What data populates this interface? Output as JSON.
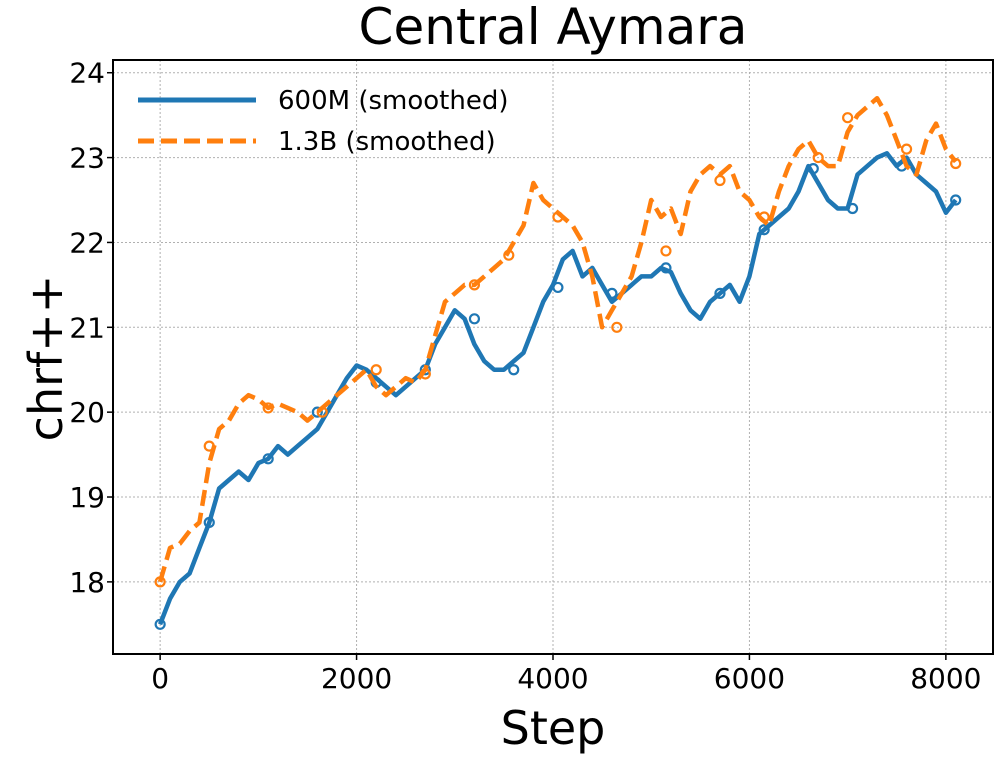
{
  "chart_data": {
    "type": "line",
    "title": "Central Aymara",
    "xlabel": "Step",
    "ylabel": "chrf++",
    "xlim": [
      -480,
      8480
    ],
    "ylim": [
      17.15,
      24.15
    ],
    "xticks": [
      0,
      2000,
      4000,
      6000,
      8000
    ],
    "xtick_labels": [
      "0",
      "2000",
      "4000",
      "6000",
      "8000"
    ],
    "yticks": [
      18,
      19,
      20,
      21,
      22,
      23,
      24
    ],
    "ytick_labels": [
      "18",
      "19",
      "20",
      "21",
      "22",
      "23",
      "24"
    ],
    "grid": true,
    "legend_position": "top-left",
    "series": [
      {
        "name": "600M (smoothed)",
        "color": "#1f77b4",
        "style": "solid",
        "x": [
          0,
          100,
          200,
          300,
          400,
          500,
          600,
          700,
          800,
          900,
          1000,
          1100,
          1200,
          1300,
          1400,
          1500,
          1600,
          1700,
          1800,
          1900,
          2000,
          2100,
          2200,
          2300,
          2400,
          2500,
          2600,
          2700,
          2800,
          2900,
          3000,
          3100,
          3200,
          3300,
          3400,
          3500,
          3600,
          3700,
          3800,
          3900,
          4000,
          4100,
          4200,
          4300,
          4400,
          4500,
          4600,
          4700,
          4800,
          4900,
          5000,
          5100,
          5200,
          5300,
          5400,
          5500,
          5600,
          5700,
          5800,
          5900,
          6000,
          6100,
          6200,
          6300,
          6400,
          6500,
          6600,
          6700,
          6800,
          6900,
          7000,
          7100,
          7200,
          7300,
          7400,
          7500,
          7600,
          7700,
          7800,
          7900,
          8000,
          8100
        ],
        "y": [
          17.5,
          17.8,
          18.0,
          18.1,
          18.4,
          18.7,
          19.1,
          19.2,
          19.3,
          19.2,
          19.4,
          19.45,
          19.6,
          19.5,
          19.6,
          19.7,
          19.8,
          20.0,
          20.2,
          20.4,
          20.55,
          20.5,
          20.4,
          20.3,
          20.2,
          20.3,
          20.4,
          20.5,
          20.8,
          21.0,
          21.2,
          21.1,
          20.8,
          20.6,
          20.5,
          20.5,
          20.6,
          20.7,
          21.0,
          21.3,
          21.5,
          21.8,
          21.9,
          21.6,
          21.7,
          21.5,
          21.3,
          21.4,
          21.5,
          21.6,
          21.6,
          21.7,
          21.65,
          21.4,
          21.2,
          21.1,
          21.3,
          21.4,
          21.5,
          21.3,
          21.6,
          22.1,
          22.2,
          22.3,
          22.4,
          22.6,
          22.9,
          22.7,
          22.5,
          22.4,
          22.4,
          22.8,
          22.9,
          23.0,
          23.05,
          22.9,
          23.0,
          22.8,
          22.7,
          22.6,
          22.35,
          22.5
        ],
        "marker_x": [
          0,
          500,
          1100,
          1600,
          2200,
          2700,
          3200,
          3600,
          4050,
          4600,
          5150,
          5700,
          6150,
          6650,
          7050,
          7550,
          8100
        ],
        "marker_y": [
          17.5,
          18.7,
          19.45,
          20.0,
          20.35,
          20.5,
          21.1,
          20.5,
          21.47,
          21.4,
          21.7,
          21.4,
          22.15,
          22.87,
          22.4,
          22.9,
          22.5
        ]
      },
      {
        "name": "1.3B (smoothed)",
        "color": "#ff7f0e",
        "style": "dashed",
        "x": [
          0,
          100,
          200,
          300,
          400,
          500,
          600,
          700,
          800,
          900,
          1000,
          1100,
          1200,
          1300,
          1400,
          1500,
          1600,
          1700,
          1800,
          1900,
          2000,
          2100,
          2200,
          2300,
          2400,
          2500,
          2600,
          2700,
          2800,
          2900,
          3000,
          3100,
          3200,
          3300,
          3400,
          3500,
          3600,
          3700,
          3800,
          3900,
          4000,
          4100,
          4200,
          4300,
          4400,
          4500,
          4600,
          4700,
          4800,
          4900,
          5000,
          5100,
          5200,
          5300,
          5400,
          5500,
          5600,
          5700,
          5800,
          5900,
          6000,
          6100,
          6200,
          6300,
          6400,
          6500,
          6600,
          6700,
          6800,
          6900,
          7000,
          7100,
          7200,
          7300,
          7400,
          7500,
          7600,
          7700,
          7800,
          7900,
          8000,
          8100
        ],
        "y": [
          18.0,
          18.4,
          18.45,
          18.6,
          18.7,
          19.4,
          19.8,
          19.9,
          20.1,
          20.2,
          20.15,
          20.05,
          20.1,
          20.05,
          20.0,
          19.9,
          20.0,
          20.1,
          20.2,
          20.3,
          20.4,
          20.5,
          20.3,
          20.2,
          20.3,
          20.4,
          20.35,
          20.5,
          20.9,
          21.3,
          21.4,
          21.5,
          21.5,
          21.6,
          21.7,
          21.8,
          22.0,
          22.2,
          22.7,
          22.5,
          22.4,
          22.3,
          22.2,
          22.0,
          21.6,
          21.0,
          21.2,
          21.4,
          21.6,
          22.0,
          22.5,
          22.3,
          22.4,
          22.1,
          22.6,
          22.8,
          22.9,
          22.8,
          22.9,
          22.6,
          22.5,
          22.3,
          22.2,
          22.6,
          22.9,
          23.1,
          23.2,
          23.0,
          22.9,
          22.9,
          23.3,
          23.5,
          23.6,
          23.7,
          23.5,
          23.2,
          22.9,
          22.8,
          23.2,
          23.4,
          23.1,
          22.95
        ],
        "marker_x": [
          0,
          500,
          1100,
          1650,
          2200,
          2700,
          3200,
          3550,
          4050,
          4650,
          5150,
          5700,
          6150,
          6700,
          7000,
          7600,
          8100
        ],
        "marker_y": [
          18.0,
          19.6,
          20.05,
          20.0,
          20.5,
          20.45,
          21.5,
          21.85,
          22.3,
          21.0,
          21.9,
          22.73,
          22.3,
          23.0,
          23.47,
          23.1,
          22.93
        ]
      }
    ]
  }
}
